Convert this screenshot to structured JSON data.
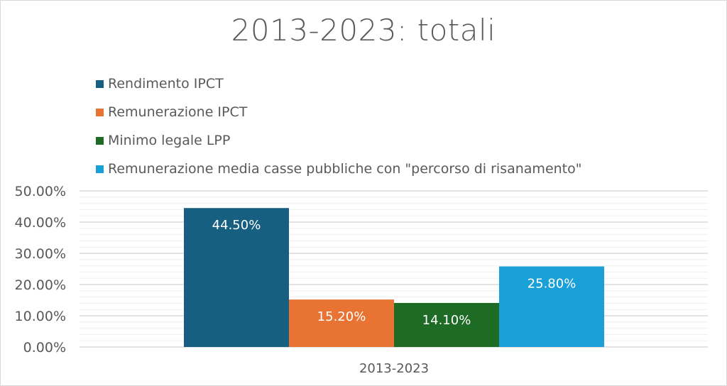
{
  "chart_data": {
    "type": "bar",
    "title": "2013-2023: totali",
    "categories": [
      "2013-2023"
    ],
    "series": [
      {
        "name": "Rendimento IPCT",
        "values": [
          44.5
        ],
        "label": "44.50%",
        "color": "#175f80"
      },
      {
        "name": "Remunerazione IPCT",
        "values": [
          15.2
        ],
        "label": "15.20%",
        "color": "#e87332"
      },
      {
        "name": "Minimo legale LPP",
        "values": [
          14.1
        ],
        "label": "14.10%",
        "color": "#1e6b25"
      },
      {
        "name": "Remunerazione media casse pubbliche con \"percorso di risanamento\"",
        "values": [
          25.8
        ],
        "label": "25.80%",
        "color": "#1aa0d8"
      }
    ],
    "ylim": [
      0,
      50
    ],
    "yticks": [
      "0.00%",
      "10.00%",
      "20.00%",
      "30.00%",
      "40.00%",
      "50.00%"
    ],
    "minor_step": 2,
    "xlabel": "",
    "ylabel": "",
    "legend": "top-left",
    "grid": true
  }
}
